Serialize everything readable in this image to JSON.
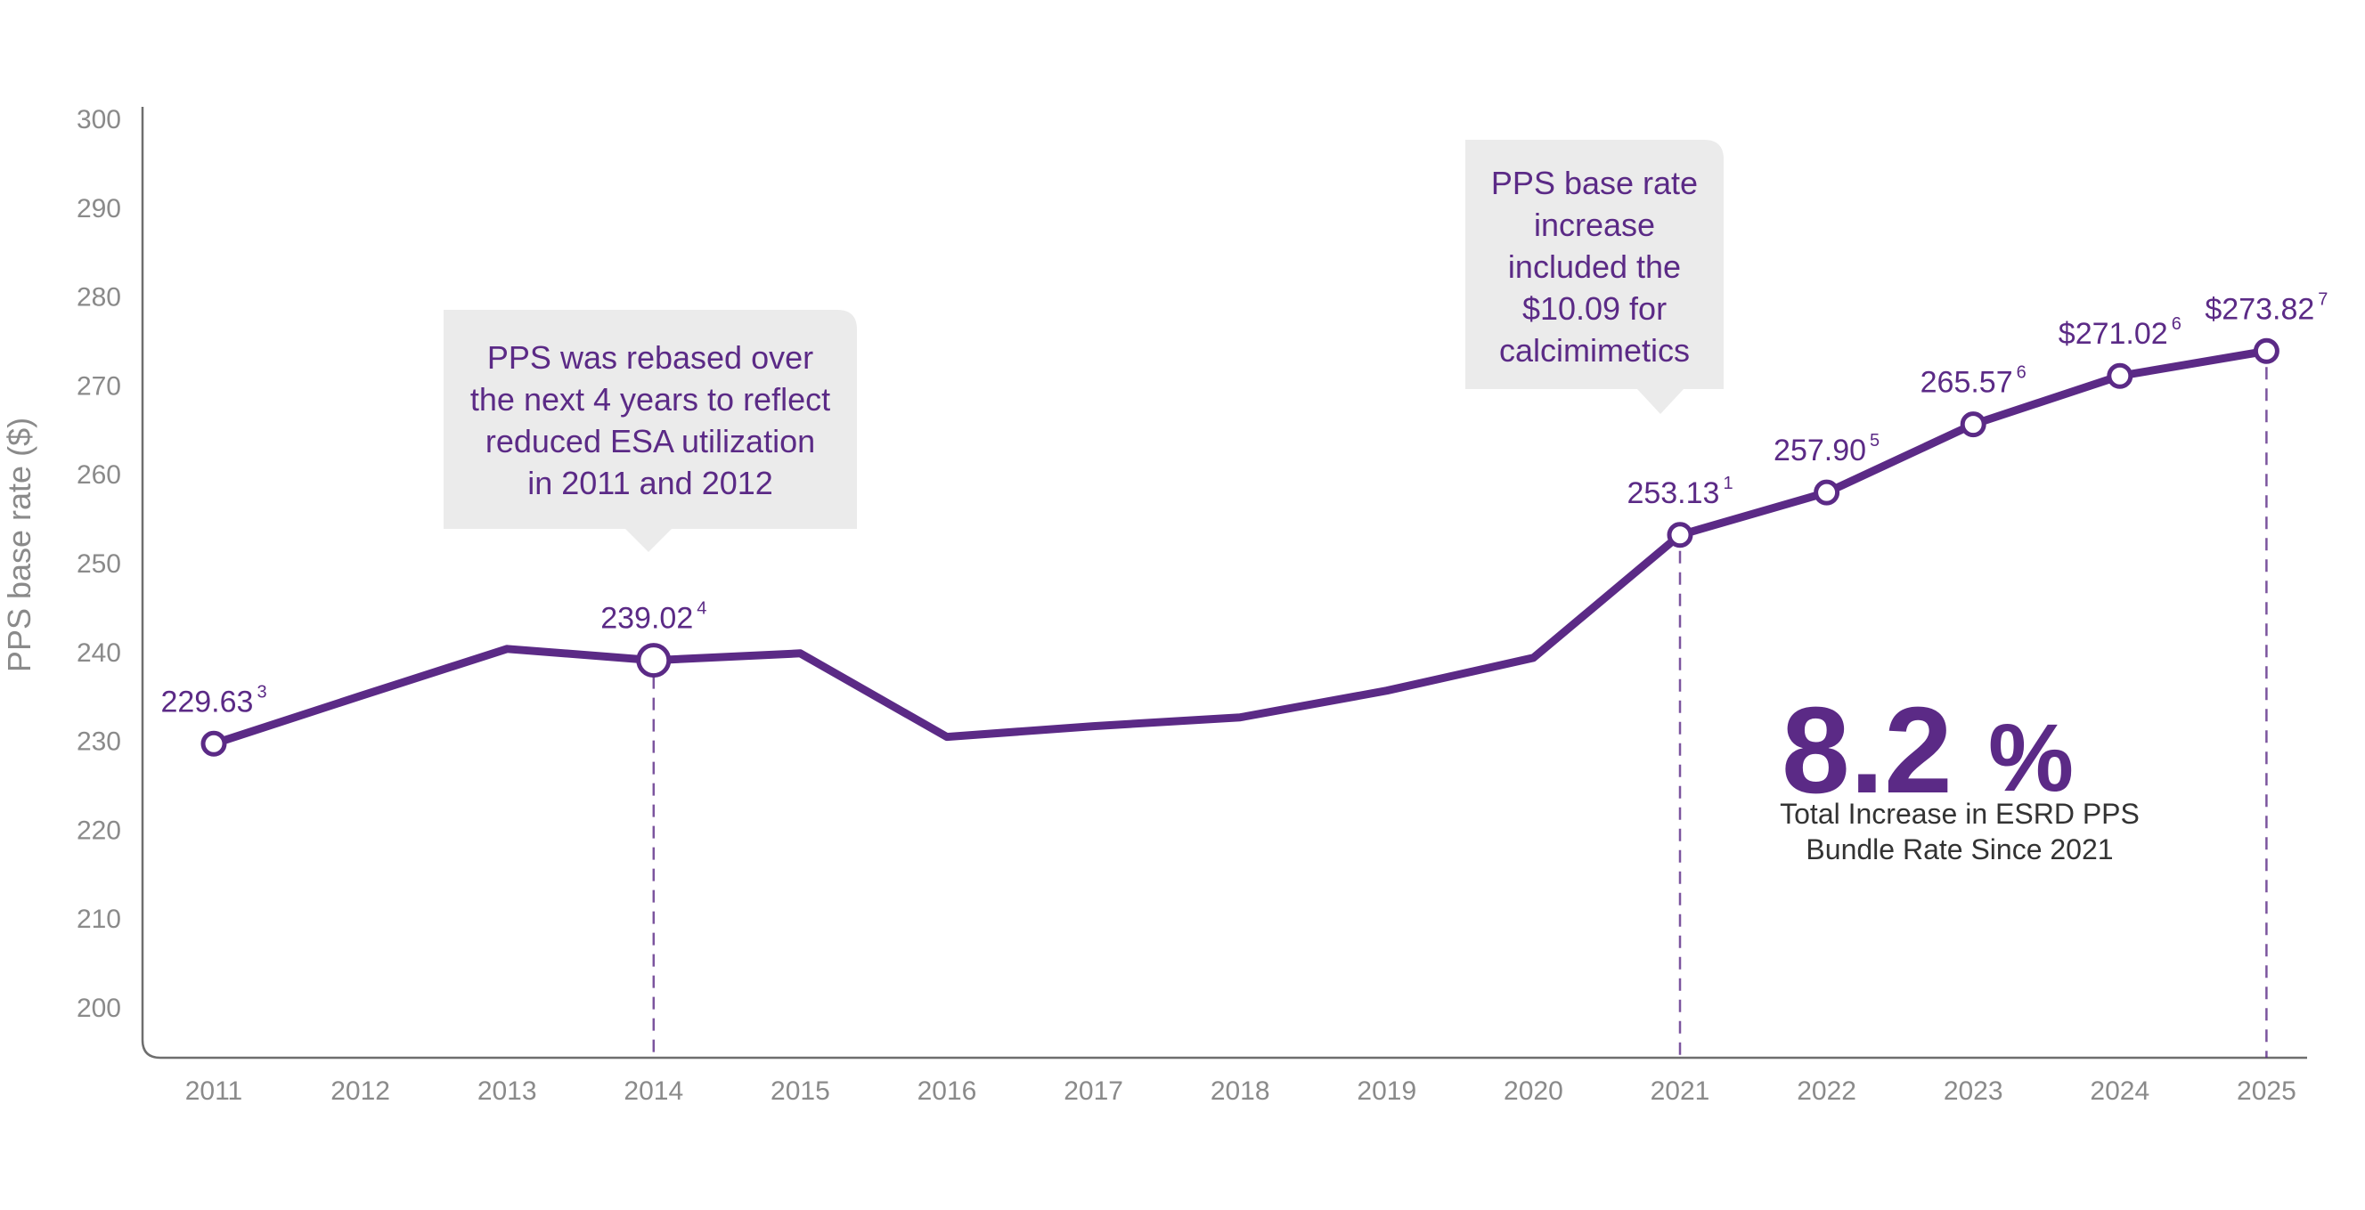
{
  "chart_data": {
    "type": "line",
    "ylabel": "PPS base rate ($)",
    "xlabel": "",
    "ylim": [
      200,
      300
    ],
    "yticks": [
      200,
      210,
      220,
      230,
      240,
      250,
      260,
      270,
      280,
      290,
      300
    ],
    "categories": [
      "2011",
      "2012",
      "2013",
      "2014",
      "2015",
      "2016",
      "2017",
      "2018",
      "2019",
      "2020",
      "2021",
      "2022",
      "2023",
      "2024",
      "2025"
    ],
    "series": [
      {
        "values": [
          229.63,
          235.0,
          240.3,
          239.02,
          239.8,
          230.4,
          231.6,
          232.6,
          235.6,
          239.3,
          253.13,
          257.9,
          265.57,
          271.02,
          273.82
        ]
      }
    ],
    "color": "#5b2a86",
    "grid": false,
    "data_labels": [
      {
        "index": 0,
        "text": "229.63",
        "sup": "3"
      },
      {
        "index": 3,
        "text": "239.02",
        "sup": "4"
      },
      {
        "index": 10,
        "text": "253.13",
        "sup": "1"
      },
      {
        "index": 11,
        "text": "257.90",
        "sup": "5"
      },
      {
        "index": 12,
        "text": "265.57",
        "sup": "6"
      },
      {
        "index": 13,
        "text": "$271.02",
        "sup": "6"
      },
      {
        "index": 14,
        "text": "$273.82",
        "sup": "7"
      }
    ],
    "markers": [
      0,
      3,
      10,
      11,
      12,
      13,
      14
    ],
    "dashed_drop_lines": [
      3,
      10,
      14
    ],
    "callouts": [
      {
        "anchor_index": 3,
        "lines": [
          "PPS was rebased over",
          "the next 4 years to reflect",
          "reduced ESA utilization",
          "in 2011 and 2012"
        ]
      },
      {
        "anchor_index": 10,
        "lines": [
          "PPS base rate",
          "increase",
          "included the",
          "$10.09 for",
          "calcimimetics"
        ]
      }
    ],
    "highlight": {
      "value": "8.2",
      "unit": "%",
      "caption_lines": [
        "Total Increase in ESRD PPS",
        "Bundle Rate Since 2021"
      ]
    }
  }
}
